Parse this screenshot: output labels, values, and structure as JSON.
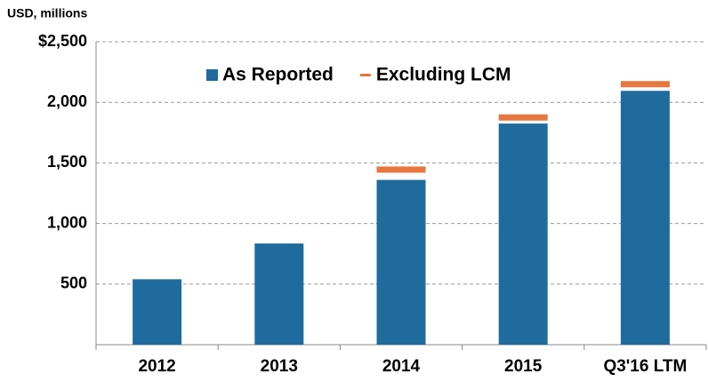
{
  "chart_data": {
    "type": "bar",
    "unit_label": "USD, millions",
    "categories": [
      "2012",
      "2013",
      "2014",
      "2015",
      "Q3'16 LTM"
    ],
    "series": [
      {
        "name": "As Reported",
        "color": "#1f6b9e",
        "values": [
          540,
          835,
          1360,
          1825,
          2095
        ]
      },
      {
        "name": "Excluding LCM",
        "color": "#e8763f",
        "values": [
          null,
          null,
          1445,
          1875,
          2150
        ],
        "marker": "line"
      }
    ],
    "ylim": [
      0,
      2500
    ],
    "yticks": [
      {
        "value": 500,
        "label": "500"
      },
      {
        "value": 1000,
        "label": "1,000"
      },
      {
        "value": 1500,
        "label": "1,500"
      },
      {
        "value": 2000,
        "label": "2,000"
      },
      {
        "value": 2500,
        "label": "$2,500"
      }
    ],
    "grid": true,
    "legend": "top"
  }
}
